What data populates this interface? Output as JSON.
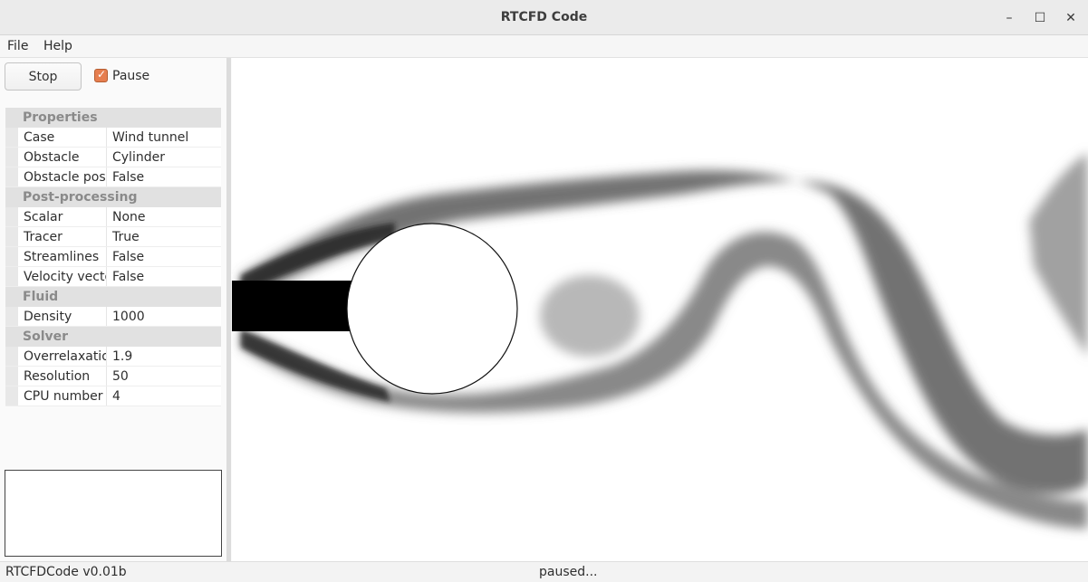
{
  "window": {
    "title": "RTCFD Code"
  },
  "menu": [
    "File",
    "Help"
  ],
  "controls": {
    "stop_label": "Stop",
    "pause_label": "Pause",
    "pause_checked": true
  },
  "properties": [
    {
      "group": "Properties",
      "rows": [
        {
          "key": "Case",
          "value": "Wind tunnel"
        },
        {
          "key": "Obstacle",
          "value": "Cylinder"
        },
        {
          "key": "Obstacle position",
          "value": "False"
        }
      ]
    },
    {
      "group": "Post-processing",
      "rows": [
        {
          "key": "Scalar",
          "value": "None"
        },
        {
          "key": "Tracer",
          "value": "True"
        },
        {
          "key": "Streamlines",
          "value": "False"
        },
        {
          "key": "Velocity vectors",
          "value": "False"
        }
      ]
    },
    {
      "group": "Fluid",
      "rows": [
        {
          "key": "Density",
          "value": "1000"
        }
      ]
    },
    {
      "group": "Solver",
      "rows": [
        {
          "key": "Overrelaxation",
          "value": "1.9"
        },
        {
          "key": "Resolution",
          "value": "50"
        },
        {
          "key": "CPU number",
          "value": "4"
        }
      ]
    }
  ],
  "status": {
    "version": "RTCFDCode v0.01b",
    "state": "paused..."
  },
  "colors": {
    "accent": "#e67e4f",
    "tracer": "#000000"
  }
}
